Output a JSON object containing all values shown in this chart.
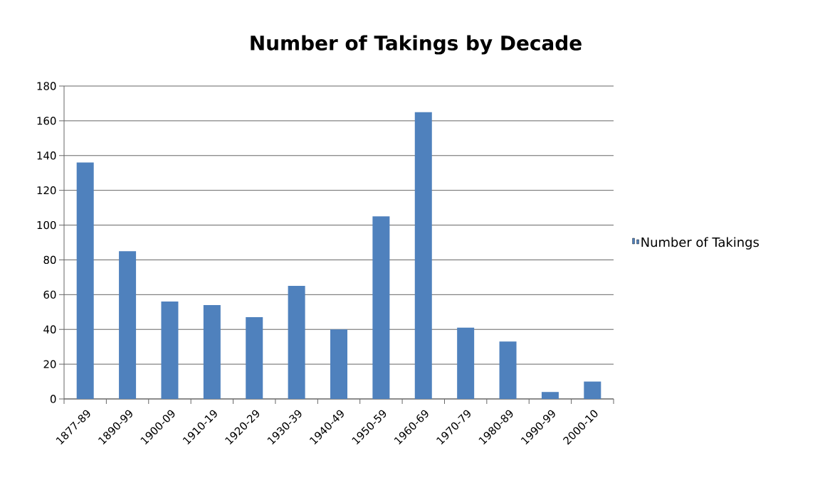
{
  "chart_data": {
    "type": "bar",
    "title": "Number of Takings by Decade",
    "categories": [
      "1877-89",
      "1890-99",
      "1900-09",
      "1910-19",
      "1920-29",
      "1930-39",
      "1940-49",
      "1950-59",
      "1960-69",
      "1970-79",
      "1980-89",
      "1990-99",
      "2000-10"
    ],
    "series": [
      {
        "name": "Number of Takings",
        "color": "#4f81bd",
        "values": [
          136,
          85,
          56,
          54,
          47,
          65,
          40,
          105,
          165,
          41,
          33,
          4,
          10
        ]
      }
    ],
    "ylim": [
      0,
      180
    ],
    "yticks": [
      0,
      20,
      40,
      60,
      80,
      100,
      120,
      140,
      160,
      180
    ],
    "grid": "y",
    "legend": "right"
  }
}
